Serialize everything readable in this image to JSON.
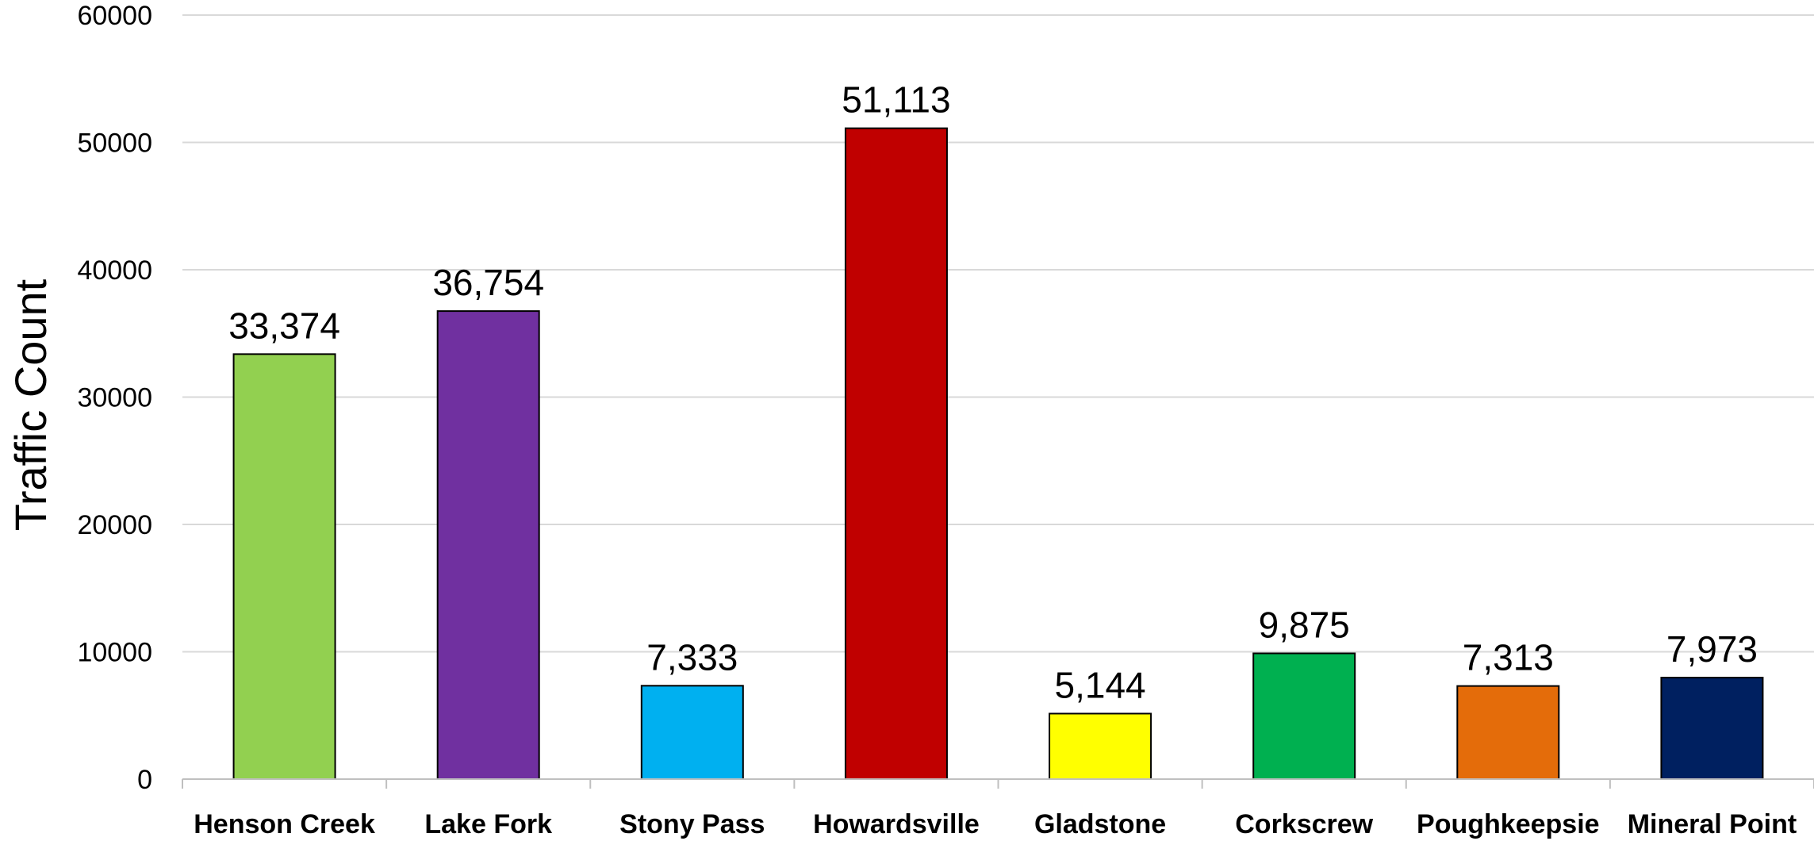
{
  "chart_data": {
    "type": "bar",
    "title": "",
    "xlabel": "",
    "ylabel": "Traffic Count",
    "ylim": [
      0,
      60000
    ],
    "yticks": [
      0,
      10000,
      20000,
      30000,
      40000,
      50000,
      60000
    ],
    "ytick_labels": [
      "0",
      "10000",
      "20000",
      "30000",
      "40000",
      "50000",
      "60000"
    ],
    "grid": true,
    "legend": "none",
    "categories": [
      "Henson Creek",
      "Lake Fork",
      "Stony Pass",
      "Howardsville",
      "Gladstone",
      "Corkscrew",
      "Poughkeepsie",
      "Mineral Point"
    ],
    "values": [
      33374,
      36754,
      7333,
      51113,
      5144,
      9875,
      7313,
      7973
    ],
    "data_labels": [
      "33,374",
      "36,754",
      "7,333",
      "51,113",
      "5,144",
      "9,875",
      "7,313",
      "7,973"
    ],
    "colors": [
      "#92D050",
      "#7030A0",
      "#00B0F0",
      "#C00000",
      "#FFFF00",
      "#00B050",
      "#E46C0A",
      "#002060"
    ]
  }
}
